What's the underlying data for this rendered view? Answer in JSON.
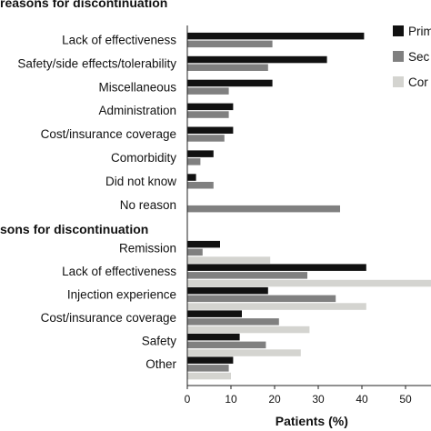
{
  "chart_data": {
    "type": "bar",
    "orientation": "horizontal",
    "xlabel": "Patients (%)",
    "xlim": [
      0,
      56
    ],
    "xticks": [
      0,
      10,
      20,
      30,
      40,
      50
    ],
    "grid": false,
    "legend_position": "top-right",
    "series": [
      {
        "name": "Prim",
        "color": "#111111"
      },
      {
        "name": "Sec",
        "color": "#808080"
      },
      {
        "name": "Cor",
        "color": "#d4d4d0"
      }
    ],
    "groups": [
      {
        "header": "reasons for discontinuation",
        "categories": [
          {
            "label": "Lack of effectiveness",
            "values": [
              40.5,
              19.5,
              null
            ]
          },
          {
            "label": "Safety/side effects/tolerability",
            "values": [
              32,
              18.5,
              null
            ]
          },
          {
            "label": "Miscellaneous",
            "values": [
              19.5,
              9.5,
              null
            ]
          },
          {
            "label": "Administration",
            "values": [
              10.5,
              9.5,
              null
            ]
          },
          {
            "label": "Cost/insurance coverage",
            "values": [
              10.5,
              8.5,
              null
            ]
          },
          {
            "label": "Comorbidity",
            "values": [
              6,
              3,
              null
            ]
          },
          {
            "label": "Did not know",
            "values": [
              2,
              6,
              null
            ]
          },
          {
            "label": "No reason",
            "values": [
              0,
              35,
              null
            ]
          }
        ]
      },
      {
        "header": "sons for discontinuation",
        "categories": [
          {
            "label": "Remission",
            "values": [
              7.5,
              3.5,
              19
            ]
          },
          {
            "label": "Lack of effectiveness",
            "values": [
              41,
              27.5,
              56
            ]
          },
          {
            "label": "Injection experience",
            "values": [
              18.5,
              34,
              41
            ]
          },
          {
            "label": "Cost/insurance coverage",
            "values": [
              12.5,
              21,
              28
            ]
          },
          {
            "label": "Safety",
            "values": [
              12,
              18,
              26
            ]
          },
          {
            "label": "Other",
            "values": [
              10.5,
              9.5,
              10
            ]
          }
        ]
      }
    ]
  }
}
